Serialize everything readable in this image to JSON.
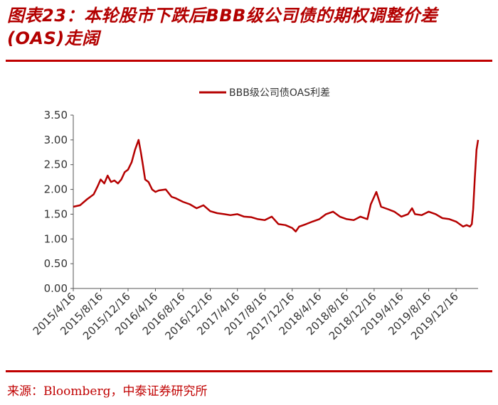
{
  "figure": {
    "title": "图表23：本轮股市下跌后BBB级公司债的期权调整价差(OAS)走阔",
    "source": "来源：Bloomberg，中泰证券研究所"
  },
  "colors": {
    "accent": "#c00000",
    "series": "#b50000"
  },
  "chart_data": {
    "type": "line",
    "title": "",
    "xlabel": "",
    "ylabel": "",
    "ylim": [
      0,
      3.5
    ],
    "yticks": [
      "0.00",
      "0.50",
      "1.00",
      "1.50",
      "2.00",
      "2.50",
      "3.00",
      "3.50"
    ],
    "xticks": [
      "2015/4/16",
      "2015/8/16",
      "2015/12/16",
      "2016/4/16",
      "2016/8/16",
      "2016/12/16",
      "2017/4/16",
      "2017/8/16",
      "2017/12/16",
      "2018/4/16",
      "2018/8/16",
      "2018/12/16",
      "2019/4/16",
      "2019/8/16",
      "2019/12/16"
    ],
    "grid": false,
    "legend": "top-center",
    "series": [
      {
        "name": "BBB级公司债OAS利差",
        "x": [
          "2015/4/16",
          "2015/5/16",
          "2015/6/16",
          "2015/7/16",
          "2015/8/1",
          "2015/8/16",
          "2015/9/1",
          "2015/9/16",
          "2015/10/1",
          "2015/10/16",
          "2015/11/1",
          "2015/11/16",
          "2015/12/1",
          "2015/12/16",
          "2016/1/1",
          "2016/1/16",
          "2016/2/1",
          "2016/2/11",
          "2016/2/20",
          "2016/3/1",
          "2016/3/16",
          "2016/4/1",
          "2016/4/16",
          "2016/5/1",
          "2016/6/1",
          "2016/6/27",
          "2016/7/16",
          "2016/8/16",
          "2016/9/16",
          "2016/10/16",
          "2016/11/16",
          "2016/12/16",
          "2017/1/16",
          "2017/2/16",
          "2017/3/16",
          "2017/4/16",
          "2017/5/16",
          "2017/6/16",
          "2017/7/16",
          "2017/8/16",
          "2017/9/16",
          "2017/10/16",
          "2017/11/16",
          "2017/12/16",
          "2018/1/1",
          "2018/1/16",
          "2018/2/16",
          "2018/3/16",
          "2018/4/16",
          "2018/5/16",
          "2018/6/16",
          "2018/7/16",
          "2018/8/16",
          "2018/9/16",
          "2018/10/16",
          "2018/11/16",
          "2018/12/1",
          "2018/12/16",
          "2018/12/26",
          "2019/1/16",
          "2019/2/16",
          "2019/3/16",
          "2019/4/16",
          "2019/5/16",
          "2019/6/3",
          "2019/6/16",
          "2019/7/16",
          "2019/8/16",
          "2019/9/16",
          "2019/10/16",
          "2019/11/16",
          "2019/12/16",
          "2020/1/16",
          "2020/2/1",
          "2020/2/16",
          "2020/2/24",
          "2020/3/1",
          "2020/3/8",
          "2020/3/16",
          "2020/3/23"
        ],
        "values": [
          1.65,
          1.68,
          1.8,
          1.9,
          2.05,
          2.2,
          2.12,
          2.28,
          2.15,
          2.18,
          2.12,
          2.2,
          2.35,
          2.4,
          2.55,
          2.8,
          3.0,
          2.75,
          2.5,
          2.2,
          2.15,
          2.0,
          1.95,
          1.98,
          2.0,
          1.85,
          1.82,
          1.75,
          1.7,
          1.62,
          1.68,
          1.56,
          1.52,
          1.5,
          1.48,
          1.5,
          1.45,
          1.44,
          1.4,
          1.38,
          1.45,
          1.3,
          1.28,
          1.22,
          1.15,
          1.25,
          1.3,
          1.35,
          1.4,
          1.5,
          1.55,
          1.45,
          1.4,
          1.38,
          1.45,
          1.4,
          1.7,
          1.85,
          1.95,
          1.65,
          1.6,
          1.55,
          1.45,
          1.5,
          1.62,
          1.5,
          1.48,
          1.55,
          1.5,
          1.42,
          1.4,
          1.35,
          1.25,
          1.28,
          1.25,
          1.3,
          1.6,
          2.2,
          2.8,
          3.0
        ]
      }
    ]
  }
}
